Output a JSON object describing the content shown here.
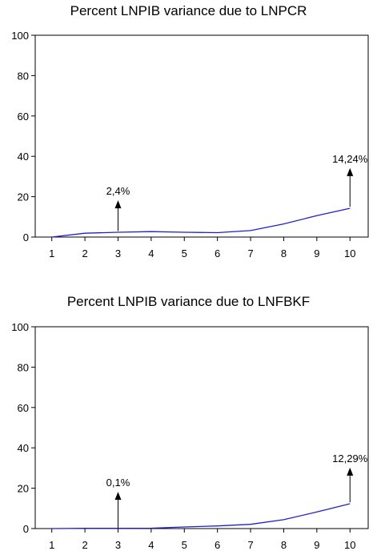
{
  "chart_data": [
    {
      "type": "line",
      "title": "Percent LNPIB variance due to LNPCR",
      "x": [
        1,
        2,
        3,
        4,
        5,
        6,
        7,
        8,
        9,
        10
      ],
      "series": [
        {
          "values": [
            0,
            1.9,
            2.4,
            2.7,
            2.4,
            2.2,
            3.2,
            6.5,
            10.6,
            14.24
          ],
          "color": "#2020cc"
        }
      ],
      "ylim": [
        0,
        100
      ],
      "yticks": [
        "0",
        "20",
        "40",
        "60",
        "80",
        "100"
      ],
      "xticks": [
        "1",
        "2",
        "3",
        "4",
        "5",
        "6",
        "7",
        "8",
        "9",
        "10"
      ],
      "annotations": [
        {
          "x": 3,
          "text": "2,4%",
          "arrow_from": 3,
          "arrow_to": 17
        },
        {
          "x": 10,
          "text": "14,24%",
          "arrow_from": 15,
          "arrow_to": 33
        }
      ],
      "grid": false
    },
    {
      "type": "line",
      "title": "Percent LNPIB variance due to LNFBKF",
      "x": [
        1,
        2,
        3,
        4,
        5,
        6,
        7,
        8,
        9,
        10
      ],
      "series": [
        {
          "values": [
            0,
            0.1,
            0.1,
            0.2,
            0.8,
            1.3,
            2.1,
            4.4,
            8.2,
            12.29
          ],
          "color": "#2020cc"
        }
      ],
      "ylim": [
        0,
        100
      ],
      "yticks": [
        "0",
        "20",
        "40",
        "60",
        "80",
        "100"
      ],
      "xticks": [
        "1",
        "2",
        "3",
        "4",
        "5",
        "6",
        "7",
        "8",
        "9",
        "10"
      ],
      "annotations": [
        {
          "x": 3,
          "text": "0,1%",
          "arrow_from": 0,
          "arrow_to": 17
        },
        {
          "x": 10,
          "text": "12,29%",
          "arrow_from": 13,
          "arrow_to": 29
        }
      ],
      "grid": false
    }
  ]
}
